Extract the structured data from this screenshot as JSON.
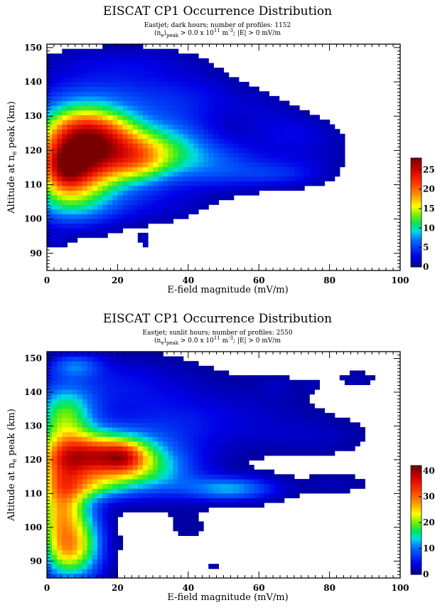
{
  "chart_data": [
    {
      "type": "heatmap",
      "title": "EISCAT CP1 Occurrence Distribution",
      "subtitle_line1": "Eastjet; dark hours;  number of profiles:  1152",
      "subtitle_line2": {
        "a": "(n",
        "a_sub": "e",
        "b": ")",
        "b_sub": "peak",
        "c": " > 0.0 x 10",
        "c_sup": "11",
        "d": " m",
        "d_sup": "-3",
        "e": "; |E| > 0 mV/m"
      },
      "xlabel": "E-field magnitude (mV/m)",
      "ylabel": {
        "a": "Altitude at n",
        "a_sub": "e",
        "b": " peak (km)"
      },
      "xlim": [
        0,
        100
      ],
      "ylim": [
        85,
        151
      ],
      "xticks": [
        0,
        20,
        40,
        60,
        80,
        100
      ],
      "yticks": [
        90,
        100,
        110,
        120,
        130,
        140,
        150
      ],
      "colorbar": {
        "ticks": [
          0,
          5,
          10,
          15,
          20,
          25
        ],
        "max": 28
      },
      "grid": false,
      "blobs": [
        {
          "x": 8,
          "y": 118,
          "sx": 9,
          "sy": 9,
          "a": 26
        },
        {
          "x": 5,
          "y": 114,
          "sx": 4,
          "sy": 5,
          "a": 6
        },
        {
          "x": 12,
          "y": 127,
          "sx": 8,
          "sy": 4,
          "a": 6
        },
        {
          "x": 20,
          "y": 121,
          "sx": 7,
          "sy": 6,
          "a": 10
        },
        {
          "x": 27,
          "y": 117,
          "sx": 6,
          "sy": 5,
          "a": 8
        },
        {
          "x": 35,
          "y": 121,
          "sx": 8,
          "sy": 6,
          "a": 8
        },
        {
          "x": 48,
          "y": 116,
          "sx": 10,
          "sy": 5,
          "a": 5
        },
        {
          "x": 65,
          "y": 113,
          "sx": 9,
          "sy": 2.5,
          "a": 3
        },
        {
          "x": 72,
          "y": 120,
          "sx": 10,
          "sy": 6,
          "a": 2
        },
        {
          "x": 20,
          "y": 136,
          "sx": 16,
          "sy": 6,
          "a": 3.5
        },
        {
          "x": 22,
          "y": 146,
          "sx": 16,
          "sy": 3.5,
          "a": 1.8
        },
        {
          "x": 5,
          "y": 103,
          "sx": 10,
          "sy": 4,
          "a": 3
        },
        {
          "x": 30,
          "y": 104,
          "sx": 11,
          "sy": 4,
          "a": 2
        },
        {
          "x": 42,
          "y": 135,
          "sx": 12,
          "sy": 5,
          "a": 2
        },
        {
          "x": 62,
          "y": 131,
          "sx": 7,
          "sy": 4,
          "a": 1.3
        },
        {
          "x": 70,
          "y": 126,
          "sx": 8,
          "sy": 3,
          "a": 1.2
        },
        {
          "x": 2,
          "y": 93.5,
          "sx": 2.5,
          "sy": 1.5,
          "a": 1.6
        },
        {
          "x": 27.5,
          "y": 94,
          "sx": 1.3,
          "sy": 1.5,
          "a": 1.6
        }
      ]
    },
    {
      "type": "heatmap",
      "title": "EISCAT CP1 Occurrence Distribution",
      "subtitle_line1": "Eastjet; sunlit hours;  number of profiles:  2550",
      "subtitle_line2": {
        "a": "(n",
        "a_sub": "e",
        "b": ")",
        "b_sub": "peak",
        "c": " > 0.0 x 10",
        "c_sup": "11",
        "d": " m",
        "d_sup": "-3",
        "e": "; |E| > 0 mV/m"
      },
      "xlabel": "E-field magnitude (mV/m)",
      "ylabel": {
        "a": "Altitude at n",
        "a_sub": "e",
        "b": " peak (km)"
      },
      "xlim": [
        0,
        100
      ],
      "ylim": [
        85,
        152
      ],
      "xticks": [
        0,
        20,
        40,
        60,
        80,
        100
      ],
      "yticks": [
        90,
        100,
        110,
        120,
        130,
        140,
        150
      ],
      "colorbar": {
        "ticks": [
          0,
          10,
          20,
          30,
          40
        ],
        "max": 42
      },
      "grid": false,
      "blobs": [
        {
          "x": 14,
          "y": 121,
          "sx": 11,
          "sy": 5,
          "a": 34
        },
        {
          "x": 22,
          "y": 121,
          "sx": 4,
          "sy": 3,
          "a": 8
        },
        {
          "x": 4,
          "y": 105,
          "sx": 5,
          "sy": 12,
          "a": 26
        },
        {
          "x": 6,
          "y": 93,
          "sx": 4,
          "sy": 5,
          "a": 10
        },
        {
          "x": 12,
          "y": 95,
          "sx": 4,
          "sy": 8,
          "a": 10
        },
        {
          "x": 5,
          "y": 133,
          "sx": 6,
          "sy": 6,
          "a": 16
        },
        {
          "x": 12,
          "y": 112,
          "sx": 8,
          "sy": 3,
          "a": 10
        },
        {
          "x": 30,
          "y": 116,
          "sx": 10,
          "sy": 5,
          "a": 10
        },
        {
          "x": 52,
          "y": 111.5,
          "sx": 9,
          "sy": 2.5,
          "a": 12
        },
        {
          "x": 36,
          "y": 130,
          "sx": 12,
          "sy": 6,
          "a": 5
        },
        {
          "x": 18,
          "y": 142,
          "sx": 16,
          "sy": 6,
          "a": 5
        },
        {
          "x": 8,
          "y": 148,
          "sx": 5,
          "sy": 2.5,
          "a": 8
        },
        {
          "x": 60,
          "y": 133,
          "sx": 12,
          "sy": 8,
          "a": 2.2
        },
        {
          "x": 78,
          "y": 127,
          "sx": 10,
          "sy": 4,
          "a": 2
        },
        {
          "x": 82,
          "y": 113,
          "sx": 7,
          "sy": 2,
          "a": 2
        },
        {
          "x": 88,
          "y": 144,
          "sx": 4,
          "sy": 1.5,
          "a": 2
        },
        {
          "x": 65,
          "y": 142,
          "sx": 3,
          "sy": 2,
          "a": 1.5
        },
        {
          "x": 74,
          "y": 142,
          "sx": 2,
          "sy": 1.5,
          "a": 1.5
        },
        {
          "x": 47,
          "y": 88,
          "sx": 1.5,
          "sy": 0.8,
          "a": 1.6
        },
        {
          "x": 40,
          "y": 100,
          "sx": 6,
          "sy": 4,
          "a": 1.2
        }
      ]
    }
  ]
}
